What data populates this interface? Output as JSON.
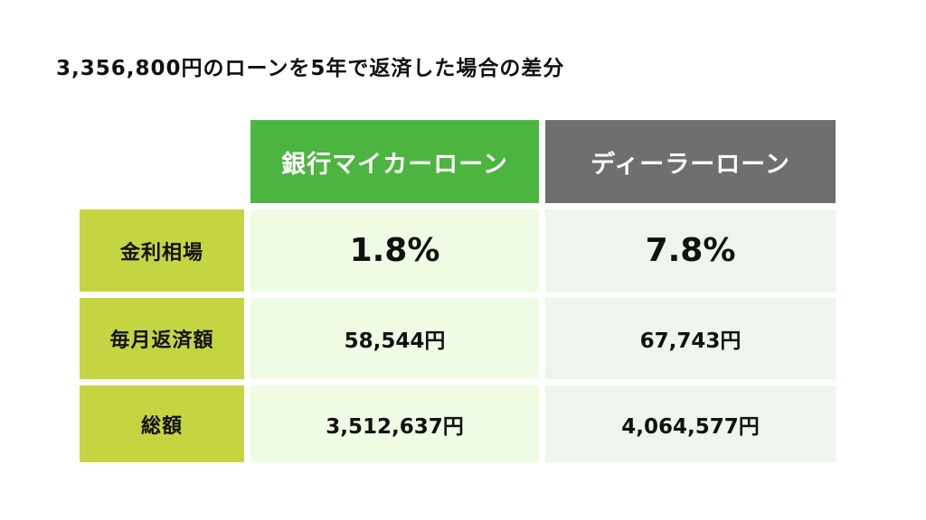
{
  "title": "3,356,800円のローンを5年で返済した場合の差分",
  "columns": {
    "bank": "銀行マイカーローン",
    "dealer": "ディーラーローン"
  },
  "rows": [
    {
      "label": "金利相場",
      "bank": "1.8%",
      "dealer": "7.8%"
    },
    {
      "label": "毎月返済額",
      "bank": "58,544円",
      "dealer": "67,743円"
    },
    {
      "label": "総額",
      "bank": "3,512,637円",
      "dealer": "4,064,577円"
    }
  ],
  "colors": {
    "bank_header": "#4cb540",
    "dealer_header": "#6f6f6f",
    "row_label": "#c5d542",
    "bank_cell": "#f0fbe3",
    "dealer_cell": "#edf5ec"
  }
}
